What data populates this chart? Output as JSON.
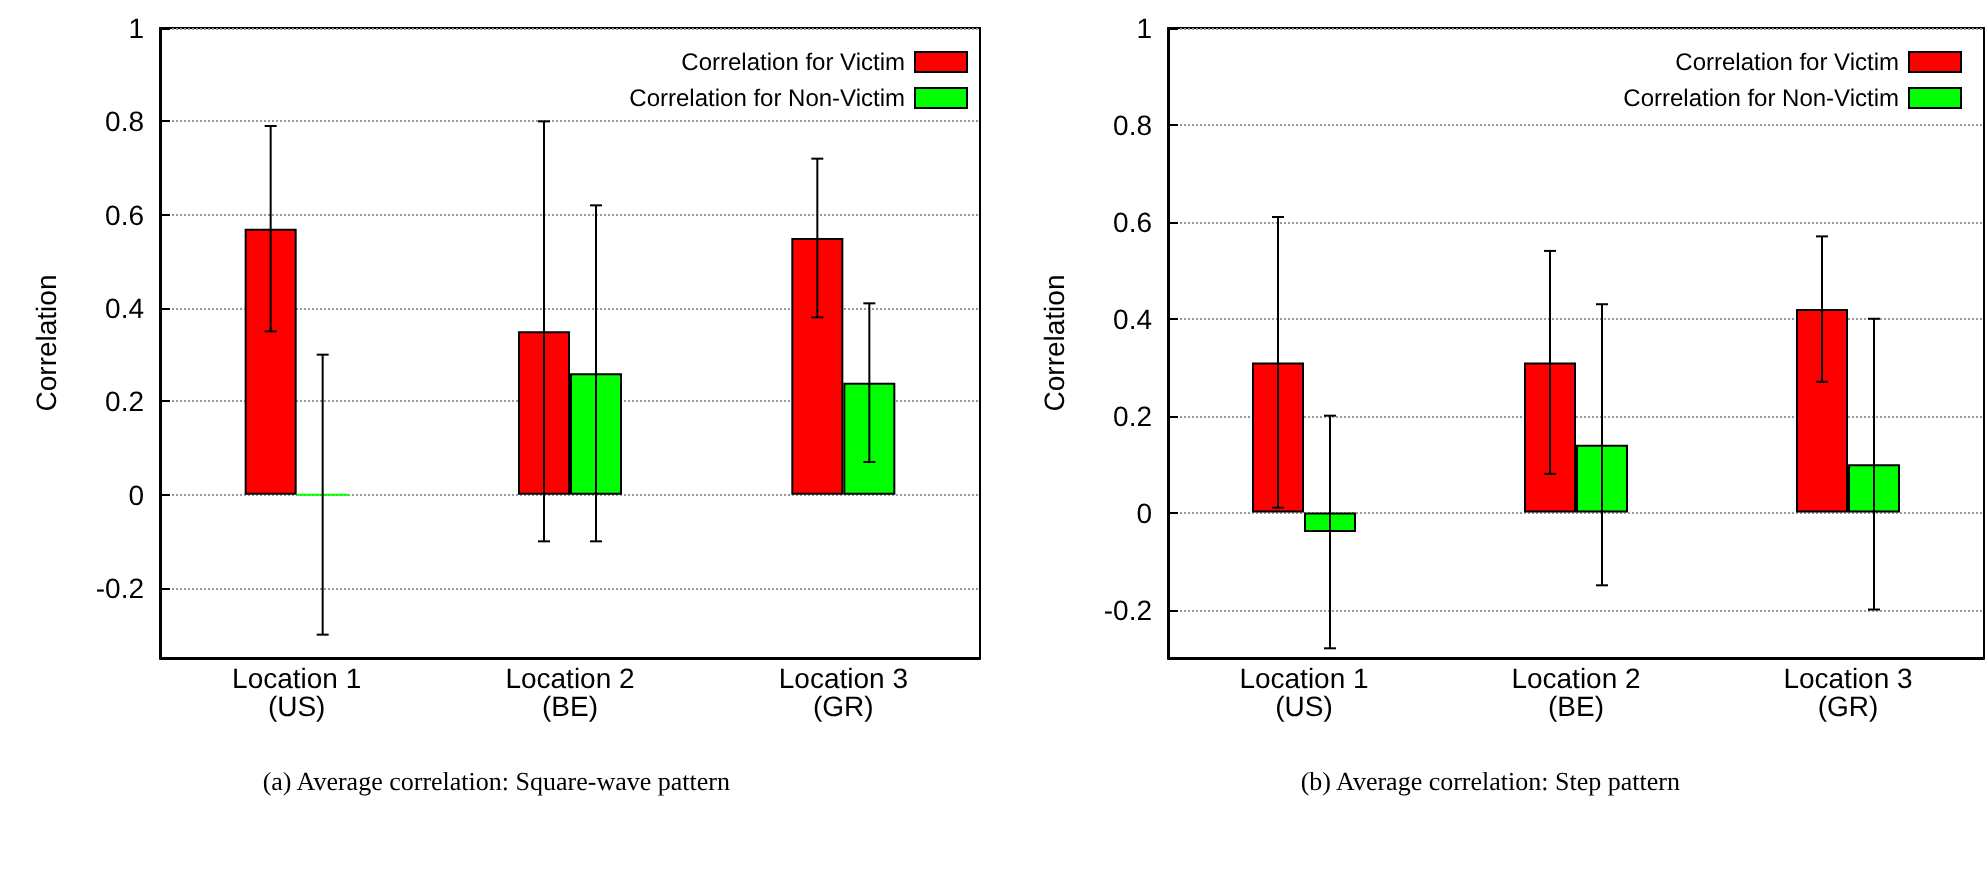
{
  "chart_data": [
    {
      "type": "bar",
      "ylabel": "Correlation",
      "categories": [
        "Location 1\n(US)",
        "Location 2\n(BE)",
        "Location 3\n(GR)"
      ],
      "series": [
        {
          "name": "Correlation for Victim",
          "color": "#ff0000",
          "values": [
            0.57,
            0.35,
            0.55
          ],
          "errors": [
            [
              0.35,
              0.79
            ],
            [
              -0.1,
              0.8
            ],
            [
              0.38,
              0.72
            ]
          ]
        },
        {
          "name": "Correlation for Non-Victim",
          "color": "#00ff00",
          "values": [
            0,
            0.26,
            0.24
          ],
          "errors": [
            [
              -0.3,
              0.3
            ],
            [
              -0.1,
              0.62
            ],
            [
              0.07,
              0.41
            ]
          ]
        }
      ],
      "ylim": [
        -0.35,
        1
      ],
      "yticks": [
        -0.2,
        0,
        0.2,
        0.4,
        0.6,
        0.8,
        1
      ],
      "grid": "y",
      "legend": "top right",
      "annotations": [
        "(a) Average correlation: Square-wave pattern"
      ]
    },
    {
      "type": "bar",
      "ylabel": "Correlation",
      "categories": [
        "Location 1\n(US)",
        "Location 2\n(BE)",
        "Location 3\n(GR)"
      ],
      "series": [
        {
          "name": "Correlation for Victim",
          "color": "#ff0000",
          "values": [
            0.31,
            0.31,
            0.42
          ],
          "errors": [
            [
              0.01,
              0.61
            ],
            [
              0.08,
              0.54
            ],
            [
              0.27,
              0.57
            ]
          ]
        },
        {
          "name": "Correlation for Non-Victim",
          "color": "#00ff00",
          "values": [
            -0.04,
            0.14,
            0.1
          ],
          "errors": [
            [
              -0.28,
              0.2
            ],
            [
              -0.15,
              0.43
            ],
            [
              -0.2,
              0.4
            ]
          ]
        }
      ],
      "ylim": [
        -0.3,
        1
      ],
      "yticks": [
        -0.2,
        0,
        0.2,
        0.4,
        0.6,
        0.8,
        1
      ],
      "grid": "y",
      "legend": "top right",
      "annotations": [
        "(b) Average correlation: Step pattern"
      ]
    }
  ]
}
